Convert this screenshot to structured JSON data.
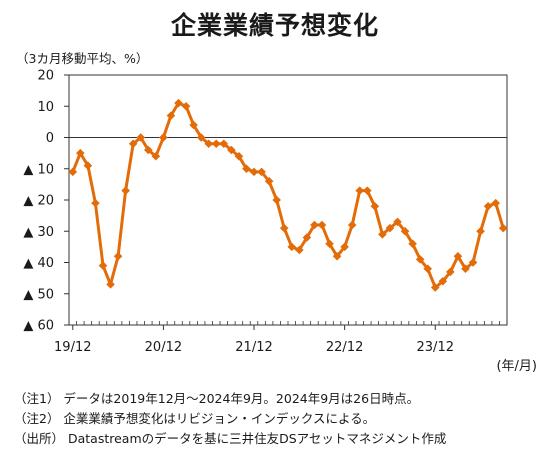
{
  "title": "企業業績予想変化",
  "chart_data": {
    "type": "line",
    "unit_label": "（3カ月移動平均、%）",
    "x_unit_label": "(年/月)",
    "x_tick_labels": [
      "19/12",
      "20/12",
      "21/12",
      "22/12",
      "23/12"
    ],
    "y_tick_labels": [
      "20",
      "10",
      "0",
      "▲ 10",
      "▲ 20",
      "▲ 30",
      "▲ 40",
      "▲ 50",
      "▲ 60"
    ],
    "ylim": [
      -60,
      20
    ],
    "y_ticks": [
      20,
      10,
      0,
      -10,
      -20,
      -30,
      -40,
      -50,
      -60
    ],
    "x_ticks": [
      "2019-12",
      "2020-12",
      "2021-12",
      "2022-12",
      "2023-12"
    ],
    "x_range": [
      "2019-12",
      "2024-09"
    ],
    "grid": false,
    "zero_line": true,
    "series": [
      {
        "color": "#E36C09",
        "x": [
          "2019-12",
          "2020-01",
          "2020-02",
          "2020-03",
          "2020-04",
          "2020-05",
          "2020-06",
          "2020-07",
          "2020-08",
          "2020-09",
          "2020-10",
          "2020-11",
          "2020-12",
          "2021-01",
          "2021-02",
          "2021-03",
          "2021-04",
          "2021-05",
          "2021-06",
          "2021-07",
          "2021-08",
          "2021-09",
          "2021-10",
          "2021-11",
          "2021-12",
          "2022-01",
          "2022-02",
          "2022-03",
          "2022-04",
          "2022-05",
          "2022-06",
          "2022-07",
          "2022-08",
          "2022-09",
          "2022-10",
          "2022-11",
          "2022-12",
          "2023-01",
          "2023-02",
          "2023-03",
          "2023-04",
          "2023-05",
          "2023-06",
          "2023-07",
          "2023-08",
          "2023-09",
          "2023-10",
          "2023-11",
          "2023-12",
          "2024-01",
          "2024-02",
          "2024-03",
          "2024-04",
          "2024-05",
          "2024-06",
          "2024-07",
          "2024-08",
          "2024-09"
        ],
        "values": [
          -11,
          -5,
          -9,
          -21,
          -41,
          -47,
          -38,
          -17,
          -2,
          0,
          -4,
          -6,
          0,
          7,
          11,
          10,
          4,
          0,
          -2,
          -2,
          -2,
          -4,
          -6,
          -10,
          -11,
          -11,
          -14,
          -20,
          -29,
          -35,
          -36,
          -32,
          -28,
          -28,
          -34,
          -38,
          -35,
          -28,
          -17,
          -17,
          -22,
          -31,
          -29,
          -27,
          -30,
          -34,
          -39,
          -42,
          -48,
          -46,
          -43,
          -38,
          -42,
          -40,
          -30,
          -22,
          -21,
          -29
        ]
      }
    ]
  },
  "notes": [
    "（注1） データは2019年12月～2024年9月。2024年9月は26日時点。",
    "（注2） 企業業績予想変化はリビジョン・インデックスによる。",
    "（出所） Datastreamのデータを基に三井住友DSアセットマネジメント作成"
  ],
  "colors": {
    "series": "#E36C09",
    "axis": "#333333"
  }
}
